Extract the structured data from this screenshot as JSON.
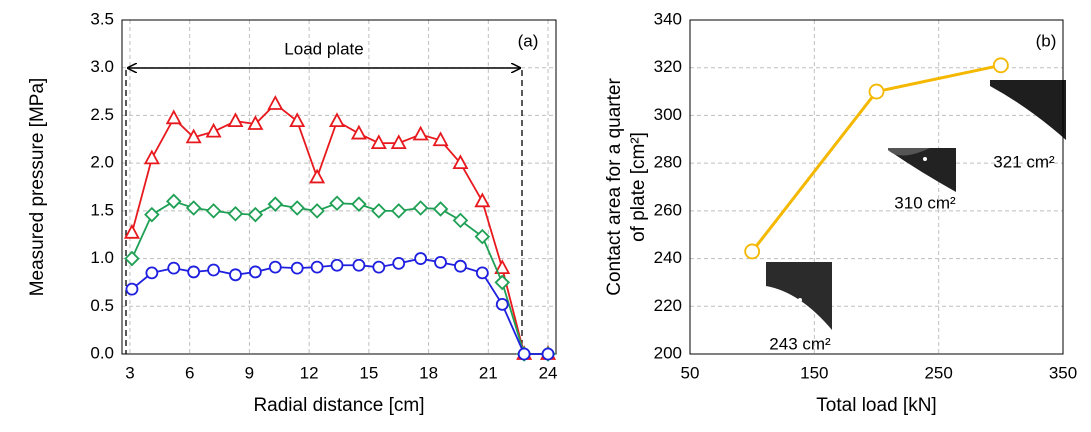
{
  "chart_data": [
    {
      "type": "line",
      "panel_label": "(a)",
      "xlabel": "Radial distance [cm]",
      "ylabel": "Measured pressure [MPa]",
      "annotation": "Load plate",
      "x": [
        3.1,
        4.1,
        5.2,
        6.2,
        7.2,
        8.3,
        9.3,
        10.3,
        11.4,
        12.4,
        13.4,
        14.5,
        15.5,
        16.5,
        17.6,
        18.6,
        19.6,
        20.7,
        21.7,
        22.8,
        24.0
      ],
      "xlim": [
        2.6,
        24.4
      ],
      "xticks": [
        3,
        6,
        9,
        12,
        15,
        18,
        21,
        24
      ],
      "ylim": [
        0,
        3.5
      ],
      "yticks": [
        {
          "value": 0,
          "label": "0.0"
        },
        0.5,
        {
          "value": 1,
          "label": "1.0"
        },
        1.5,
        {
          "value": 2,
          "label": "2.0"
        },
        2.5,
        {
          "value": 3,
          "label": "3.0"
        },
        3.5
      ],
      "grid": true,
      "series": [
        {
          "color": "#e8191e",
          "marker": "triangle",
          "values": [
            1.27,
            2.05,
            2.47,
            2.27,
            2.33,
            2.44,
            2.41,
            2.62,
            2.44,
            1.85,
            2.44,
            2.31,
            2.21,
            2.21,
            2.3,
            2.24,
            2.0,
            1.6,
            0.9,
            0.0,
            0.0
          ]
        },
        {
          "color": "#1fa055",
          "marker": "diamond",
          "values": [
            1.0,
            1.46,
            1.6,
            1.53,
            1.5,
            1.47,
            1.46,
            1.57,
            1.53,
            1.5,
            1.58,
            1.57,
            1.5,
            1.5,
            1.53,
            1.52,
            1.4,
            1.23,
            0.75,
            0.0,
            0.0
          ]
        },
        {
          "color": "#1f1fe0",
          "marker": "circle",
          "values": [
            0.68,
            0.85,
            0.9,
            0.86,
            0.88,
            0.83,
            0.86,
            0.91,
            0.9,
            0.91,
            0.93,
            0.93,
            0.91,
            0.95,
            1.0,
            0.96,
            0.92,
            0.85,
            0.52,
            0.0,
            0.0
          ]
        }
      ]
    },
    {
      "type": "line",
      "panel_label": "(b)",
      "xlabel": "Total load [kN]",
      "ylabel": [
        "Contact area for a quarter",
        "of plate [cm²]"
      ],
      "x": [
        100,
        200,
        300
      ],
      "xlim": [
        50,
        350
      ],
      "xticks": [
        50,
        150,
        250,
        350
      ],
      "ylim": [
        200,
        340
      ],
      "yticks": [
        200,
        220,
        240,
        260,
        280,
        300,
        320,
        340
      ],
      "grid": true,
      "series": [
        {
          "color": "#f5b800",
          "marker": "circle",
          "values": [
            243,
            310,
            321
          ]
        }
      ],
      "value_labels": [
        "243 cm²",
        "310 cm²",
        "321 cm²"
      ]
    }
  ]
}
